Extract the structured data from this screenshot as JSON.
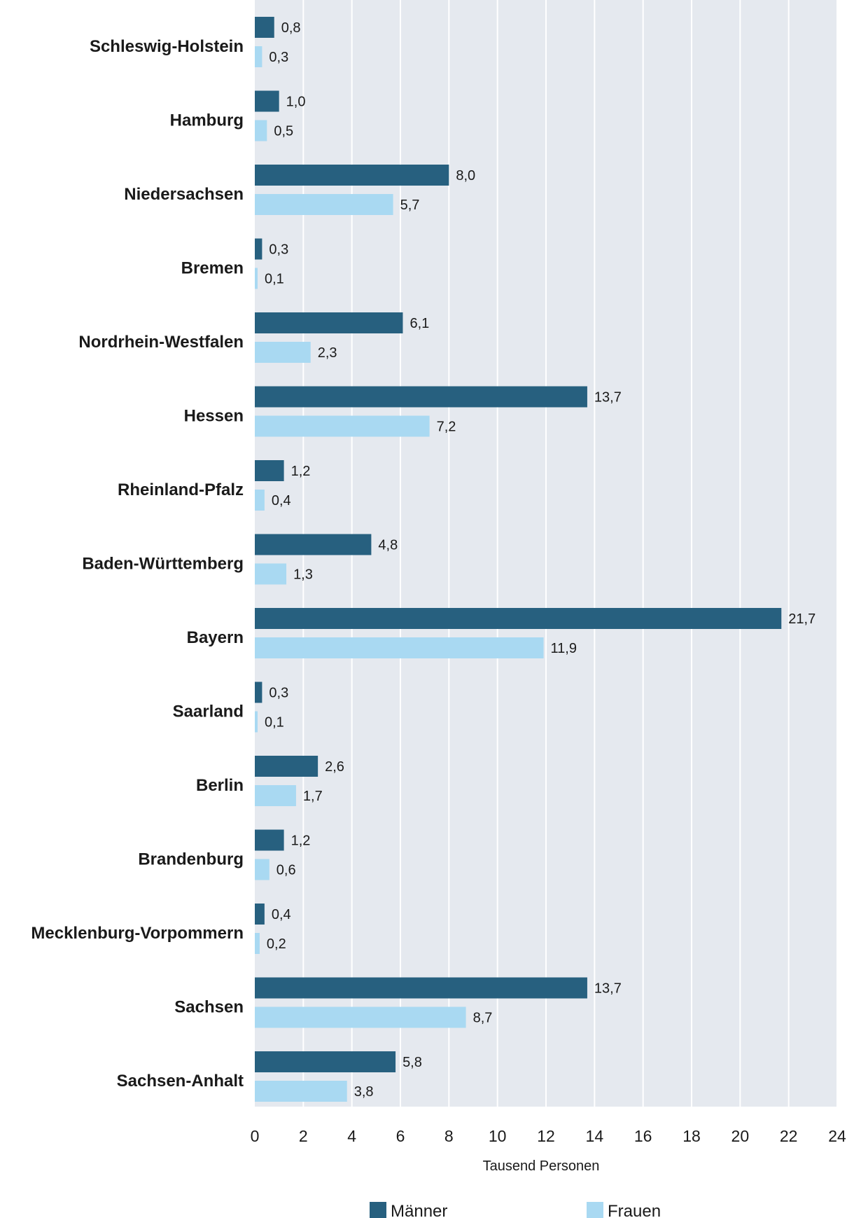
{
  "chart_data": {
    "type": "bar",
    "orientation": "horizontal",
    "categories": [
      "Schleswig-Holstein",
      "Hamburg",
      "Niedersachsen",
      "Bremen",
      "Nordrhein-Westfalen",
      "Hessen",
      "Rheinland-Pfalz",
      "Baden-Württemberg",
      "Bayern",
      "Saarland",
      "Berlin",
      "Brandenburg",
      "Mecklenburg-Vorpommern",
      "Sachsen",
      "Sachsen-Anhalt"
    ],
    "series": [
      {
        "name": "Männer",
        "color": "#27607f",
        "values": [
          0.8,
          1.0,
          8.0,
          0.3,
          6.1,
          13.7,
          1.2,
          4.8,
          21.7,
          0.3,
          2.6,
          1.2,
          0.4,
          13.7,
          5.8
        ],
        "labels": [
          "0,8",
          "1,0",
          "8,0",
          "0,3",
          "6,1",
          "13,7",
          "1,2",
          "4,8",
          "21,7",
          "0,3",
          "2,6",
          "1,2",
          "0,4",
          "13,7",
          "5,8"
        ]
      },
      {
        "name": "Frauen",
        "color": "#a9d9f2",
        "values": [
          0.3,
          0.5,
          5.7,
          0.1,
          2.3,
          7.2,
          0.4,
          1.3,
          11.9,
          0.1,
          1.7,
          0.6,
          0.2,
          8.7,
          3.8
        ],
        "labels": [
          "0,3",
          "0,5",
          "5,7",
          "0,1",
          "2,3",
          "7,2",
          "0,4",
          "1,3",
          "11,9",
          "0,1",
          "1,7",
          "0,6",
          "0,2",
          "8,7",
          "3,8"
        ]
      }
    ],
    "xlabel": "Tausend Personen",
    "xlim": [
      0,
      24
    ],
    "xticks": [
      0,
      2,
      4,
      6,
      8,
      10,
      12,
      14,
      16,
      18,
      20,
      22,
      24
    ],
    "xtick_labels": [
      "0",
      "2",
      "4",
      "6",
      "8",
      "10",
      "12",
      "14",
      "16",
      "18",
      "20",
      "22",
      "24"
    ],
    "grid": true,
    "legend_position": "bottom",
    "background_color": "#e5e9ef"
  }
}
